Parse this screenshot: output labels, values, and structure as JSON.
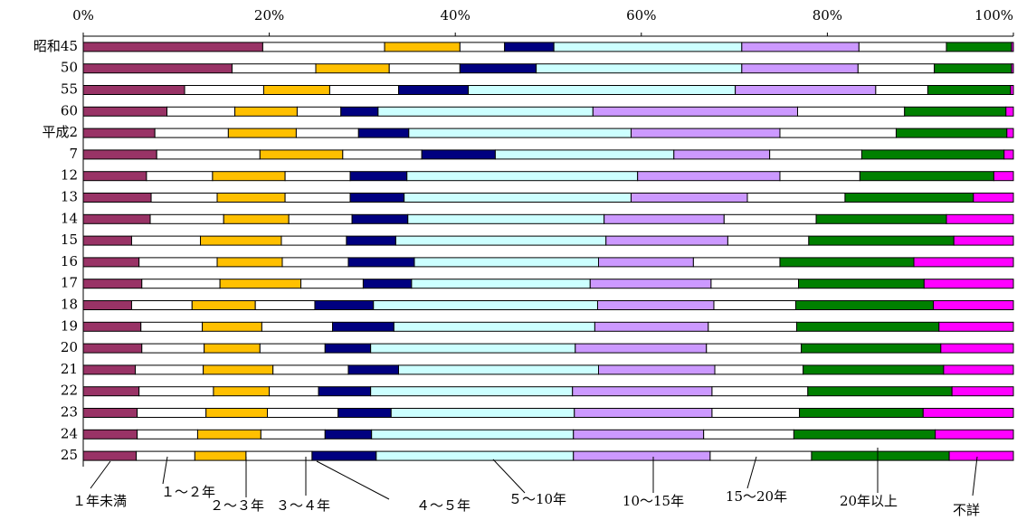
{
  "chart_data": {
    "type": "stacked-bar-horizontal-percent",
    "categories": [
      "昭和45",
      "50",
      "55",
      "60",
      "平成2",
      "7",
      "12",
      "13",
      "14",
      "15",
      "16",
      "17",
      "18",
      "19",
      "20",
      "21",
      "22",
      "23",
      "24",
      "25"
    ],
    "xlim": [
      0,
      100
    ],
    "xticks": [
      {
        "value": 0,
        "label": "0%"
      },
      {
        "value": 20,
        "label": "20%"
      },
      {
        "value": 40,
        "label": "40%"
      },
      {
        "value": 60,
        "label": "60%"
      },
      {
        "value": 80,
        "label": "80%"
      },
      {
        "value": 100,
        "label": "100%"
      }
    ],
    "series": [
      {
        "name": "１年未満",
        "color": "#993366",
        "values": [
          19.3,
          16.0,
          10.9,
          9.0,
          7.7,
          7.9,
          6.8,
          7.3,
          7.2,
          5.2,
          6.0,
          6.3,
          5.2,
          6.2,
          6.3,
          5.6,
          6.0,
          5.8,
          5.8,
          5.7
        ]
      },
      {
        "name": "１～２年",
        "color": "#ffffff",
        "values": [
          13.1,
          9.0,
          8.5,
          7.3,
          7.9,
          11.1,
          7.1,
          7.1,
          7.9,
          7.4,
          8.4,
          8.4,
          6.5,
          6.6,
          6.7,
          7.3,
          8.0,
          7.4,
          6.5,
          6.3
        ]
      },
      {
        "name": "２～３年",
        "color": "#ffc000",
        "values": [
          8.1,
          7.9,
          7.1,
          6.7,
          7.3,
          8.9,
          7.8,
          7.3,
          7.0,
          8.7,
          7.0,
          8.7,
          6.8,
          6.4,
          6.0,
          7.5,
          6.0,
          6.6,
          6.8,
          5.5
        ]
      },
      {
        "name": "３～４年",
        "color": "#ffffff",
        "values": [
          4.8,
          7.6,
          7.4,
          4.7,
          6.7,
          8.5,
          7.0,
          7.0,
          6.8,
          7.0,
          7.1,
          6.7,
          6.4,
          7.6,
          7.0,
          8.1,
          5.3,
          7.6,
          6.9,
          7.1
        ]
      },
      {
        "name": "４～５年",
        "color": "#000080",
        "values": [
          5.3,
          8.2,
          7.5,
          4.0,
          5.4,
          7.9,
          6.1,
          5.8,
          6.0,
          5.3,
          7.1,
          5.2,
          6.3,
          6.6,
          4.9,
          5.4,
          5.6,
          5.7,
          5.0,
          6.9
        ]
      },
      {
        "name": "５～10年",
        "color": "#ccffff",
        "values": [
          20.2,
          22.1,
          28.7,
          23.1,
          23.9,
          19.2,
          24.8,
          24.4,
          21.1,
          22.6,
          19.8,
          19.2,
          24.1,
          21.6,
          22.0,
          21.5,
          21.7,
          19.7,
          21.7,
          21.2
        ]
      },
      {
        "name": "10～15年",
        "color": "#cc99ff",
        "values": [
          12.6,
          12.5,
          15.1,
          22.0,
          16.0,
          10.3,
          15.3,
          12.5,
          12.9,
          13.1,
          10.2,
          13.0,
          12.5,
          12.2,
          14.1,
          12.5,
          15.0,
          14.8,
          14.0,
          14.7
        ]
      },
      {
        "name": "15～20年",
        "color": "#ffffff",
        "values": [
          9.4,
          8.2,
          5.6,
          11.5,
          12.5,
          9.9,
          8.6,
          10.5,
          9.9,
          8.7,
          9.3,
          9.4,
          8.8,
          9.5,
          10.2,
          9.5,
          10.3,
          9.4,
          9.7,
          10.9
        ]
      },
      {
        "name": "20年以上",
        "color": "#008000",
        "values": [
          7.0,
          8.3,
          8.9,
          10.9,
          11.9,
          15.3,
          14.4,
          13.8,
          14.0,
          15.6,
          14.4,
          13.5,
          14.8,
          15.3,
          15.0,
          15.1,
          15.5,
          13.3,
          15.2,
          14.8
        ]
      },
      {
        "name": "不詳",
        "color": "#ff00ff",
        "values": [
          0.2,
          0.2,
          0.3,
          0.8,
          0.7,
          1.0,
          2.1,
          4.3,
          7.2,
          6.4,
          10.7,
          9.6,
          8.6,
          8.0,
          7.8,
          7.5,
          6.6,
          9.7,
          8.4,
          6.9
        ]
      }
    ]
  }
}
